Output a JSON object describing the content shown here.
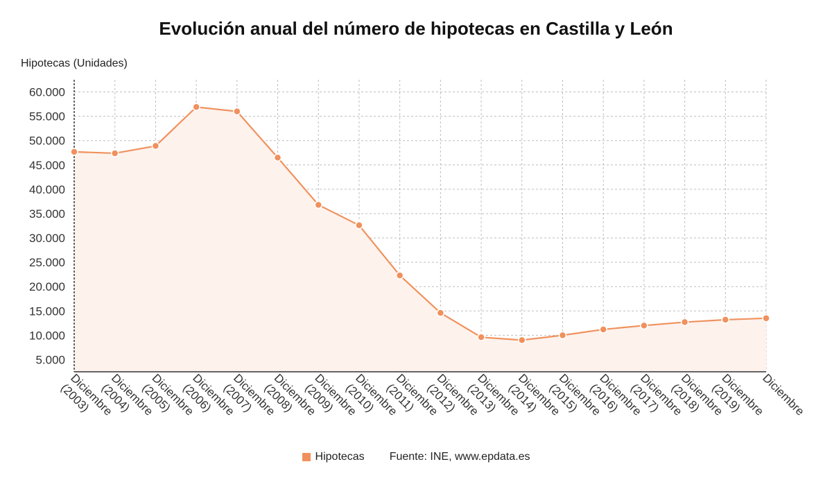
{
  "chart_data": {
    "type": "line",
    "title": "Evolución anual del número de hipotecas en Castilla y León",
    "ylabel": "Hipotecas (Unidades)",
    "xlabel": "",
    "categories": [
      [
        "Diciembre",
        "(2003)"
      ],
      [
        "Diciembre",
        "(2004)"
      ],
      [
        "Diciembre",
        "(2005)"
      ],
      [
        "Diciembre",
        "(2006)"
      ],
      [
        "Diciembre",
        "(2007)"
      ],
      [
        "Diciembre",
        "(2008)"
      ],
      [
        "Diciembre",
        "(2009)"
      ],
      [
        "Diciembre",
        "(2010)"
      ],
      [
        "Diciembre",
        "(2011)"
      ],
      [
        "Diciembre",
        "(2012)"
      ],
      [
        "Diciembre",
        "(2013)"
      ],
      [
        "Diciembre",
        "(2014)"
      ],
      [
        "Diciembre",
        "(2015)"
      ],
      [
        "Diciembre",
        "(2016)"
      ],
      [
        "Diciembre",
        "(2017)"
      ],
      [
        "Diciembre",
        "(2018)"
      ],
      [
        "Diciembre",
        "(2019)"
      ],
      [
        "Diciembre"
      ]
    ],
    "series": [
      {
        "name": "Hipotecas",
        "color": "#f0915d",
        "values": [
          47700,
          47400,
          48900,
          56900,
          56000,
          46500,
          36800,
          32600,
          22300,
          14600,
          9600,
          9000,
          10000,
          11200,
          12000,
          12700,
          13200,
          13500
        ]
      }
    ],
    "ylim": [
      2500,
      62500
    ],
    "yticks": [
      5000,
      10000,
      15000,
      20000,
      25000,
      30000,
      35000,
      40000,
      45000,
      50000,
      55000,
      60000
    ],
    "ytick_labels": [
      "5.000",
      "10.000",
      "15.000",
      "20.000",
      "25.000",
      "30.000",
      "35.000",
      "40.000",
      "45.000",
      "50.000",
      "55.000",
      "60.000"
    ],
    "grid": true,
    "legend_position": "bottom-center",
    "area_fill": "#fdf2ec",
    "source": "Fuente: INE, www.epdata.es"
  }
}
